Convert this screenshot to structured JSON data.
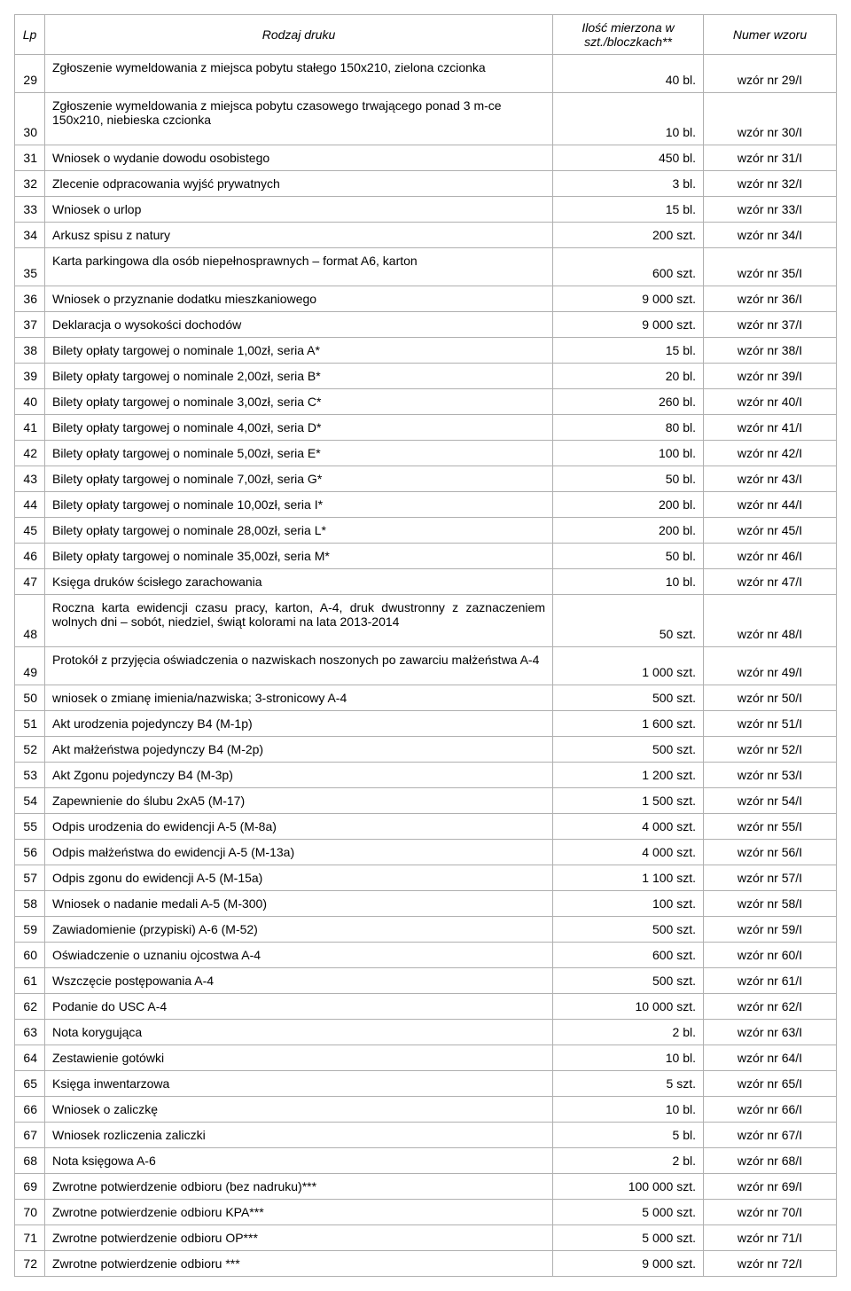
{
  "columns": {
    "lp": "Lp",
    "desc": "Rodzaj druku",
    "qty": "Ilość mierzona w szt./bloczkach**",
    "num": "Numer wzoru"
  },
  "rows": [
    {
      "lp": "29",
      "desc": "Zgłoszenie wymeldowania z miejsca pobytu stałego 150x210, zielona czcionka",
      "qty": "40 bl.",
      "num": "wzór nr 29/I",
      "tall": true
    },
    {
      "lp": "30",
      "desc": "Zgłoszenie wymeldowania z miejsca pobytu czasowego trwającego ponad 3 m-ce 150x210, niebieska czcionka",
      "qty": "10 bl.",
      "num": "wzór nr 30/I",
      "tall": true
    },
    {
      "lp": "31",
      "desc": "Wniosek o wydanie dowodu osobistego",
      "qty": "450 bl.",
      "num": "wzór nr 31/I"
    },
    {
      "lp": "32",
      "desc": "Zlecenie odpracowania wyjść prywatnych",
      "qty": "3 bl.",
      "num": "wzór nr 32/I"
    },
    {
      "lp": "33",
      "desc": "Wniosek o urlop",
      "qty": "15 bl.",
      "num": "wzór nr 33/I"
    },
    {
      "lp": "34",
      "desc": "Arkusz spisu z natury",
      "qty": "200 szt.",
      "num": "wzór nr 34/I"
    },
    {
      "lp": "35",
      "desc": "Karta parkingowa dla osób niepełnosprawnych – format A6, karton",
      "qty": "600 szt.",
      "num": "wzór nr 35/I",
      "tall": true
    },
    {
      "lp": "36",
      "desc": "Wniosek o przyznanie dodatku mieszkaniowego",
      "qty": "9 000 szt.",
      "num": "wzór nr 36/I"
    },
    {
      "lp": "37",
      "desc": "Deklaracja o wysokości dochodów",
      "qty": "9 000 szt.",
      "num": "wzór nr 37/I"
    },
    {
      "lp": "38",
      "desc": "Bilety opłaty targowej o nominale 1,00zł, seria A*",
      "qty": "15 bl.",
      "num": "wzór nr 38/I"
    },
    {
      "lp": "39",
      "desc": "Bilety opłaty targowej o nominale 2,00zł, seria B*",
      "qty": "20 bl.",
      "num": "wzór nr 39/I"
    },
    {
      "lp": "40",
      "desc": "Bilety opłaty targowej o nominale 3,00zł, seria C*",
      "qty": "260 bl.",
      "num": "wzór nr 40/I"
    },
    {
      "lp": "41",
      "desc": "Bilety opłaty targowej o nominale 4,00zł, seria D*",
      "qty": "80 bl.",
      "num": "wzór nr 41/I"
    },
    {
      "lp": "42",
      "desc": "Bilety opłaty targowej o nominale 5,00zł, seria E*",
      "qty": "100 bl.",
      "num": "wzór nr 42/I"
    },
    {
      "lp": "43",
      "desc": "Bilety opłaty targowej o nominale 7,00zł, seria G*",
      "qty": "50 bl.",
      "num": "wzór nr 43/I"
    },
    {
      "lp": "44",
      "desc": "Bilety opłaty targowej o nominale 10,00zł, seria I*",
      "qty": "200 bl.",
      "num": "wzór nr 44/I"
    },
    {
      "lp": "45",
      "desc": "Bilety opłaty targowej o nominale 28,00zł, seria L*",
      "qty": "200 bl.",
      "num": "wzór nr 45/I"
    },
    {
      "lp": "46",
      "desc": "Bilety opłaty targowej o nominale 35,00zł, seria M*",
      "qty": "50 bl.",
      "num": "wzór nr 46/I"
    },
    {
      "lp": "47",
      "desc": "Księga druków ścisłego zarachowania",
      "qty": "10 bl.",
      "num": "wzór nr 47/I"
    },
    {
      "lp": "48",
      "desc": "Roczna karta ewidencji czasu pracy, karton, A-4, druk dwustronny z zaznaczeniem wolnych dni – sobót, niedziel, świąt kolorami na lata 2013-2014",
      "qty": "50 szt.",
      "num": "wzór nr 48/I",
      "tall": true,
      "justify": true
    },
    {
      "lp": "49",
      "desc": "Protokół z przyjęcia oświadczenia o nazwiskach noszonych po zawarciu małżeństwa A-4",
      "qty": "1 000 szt.",
      "num": "wzór nr 49/I",
      "tall": true
    },
    {
      "lp": "50",
      "desc": "wniosek o zmianę imienia/nazwiska; 3-stronicowy A-4",
      "qty": "500 szt.",
      "num": "wzór nr 50/I"
    },
    {
      "lp": "51",
      "desc": "Akt urodzenia pojedynczy B4 (M-1p)",
      "qty": "1 600 szt.",
      "num": "wzór nr 51/I"
    },
    {
      "lp": "52",
      "desc": "Akt małżeństwa pojedynczy B4 (M-2p)",
      "qty": "500 szt.",
      "num": "wzór nr 52/I"
    },
    {
      "lp": "53",
      "desc": "Akt Zgonu pojedynczy B4 (M-3p)",
      "qty": "1 200 szt.",
      "num": "wzór nr 53/I"
    },
    {
      "lp": "54",
      "desc": "Zapewnienie do ślubu 2xA5 (M-17)",
      "qty": "1 500 szt.",
      "num": "wzór nr 54/I"
    },
    {
      "lp": "55",
      "desc": "Odpis urodzenia do ewidencji A-5 (M-8a)",
      "qty": "4 000 szt.",
      "num": "wzór nr 55/I"
    },
    {
      "lp": "56",
      "desc": "Odpis małżeństwa do ewidencji A-5 (M-13a)",
      "qty": "4 000 szt.",
      "num": "wzór nr 56/I"
    },
    {
      "lp": "57",
      "desc": "Odpis zgonu do ewidencji A-5 (M-15a)",
      "qty": "1 100 szt.",
      "num": "wzór nr 57/I"
    },
    {
      "lp": "58",
      "desc": "Wniosek o nadanie medali A-5 (M-300)",
      "qty": "100 szt.",
      "num": "wzór nr 58/I"
    },
    {
      "lp": "59",
      "desc": "Zawiadomienie (przypiski) A-6 (M-52)",
      "qty": "500 szt.",
      "num": "wzór nr 59/I"
    },
    {
      "lp": "60",
      "desc": "Oświadczenie o uznaniu ojcostwa A-4",
      "qty": "600 szt.",
      "num": "wzór nr 60/I"
    },
    {
      "lp": "61",
      "desc": "Wszczęcie postępowania A-4",
      "qty": "500 szt.",
      "num": "wzór nr 61/I"
    },
    {
      "lp": "62",
      "desc": "Podanie do USC A-4",
      "qty": "10 000 szt.",
      "num": "wzór nr 62/I"
    },
    {
      "lp": "63",
      "desc": "Nota korygująca",
      "qty": "2 bl.",
      "num": "wzór nr 63/I"
    },
    {
      "lp": "64",
      "desc": "Zestawienie gotówki",
      "qty": "10 bl.",
      "num": "wzór nr 64/I"
    },
    {
      "lp": "65",
      "desc": "Księga inwentarzowa",
      "qty": "5 szt.",
      "num": "wzór nr 65/I"
    },
    {
      "lp": "66",
      "desc": "Wniosek o zaliczkę",
      "qty": "10 bl.",
      "num": "wzór nr 66/I"
    },
    {
      "lp": "67",
      "desc": "Wniosek rozliczenia zaliczki",
      "qty": "5 bl.",
      "num": "wzór nr 67/I"
    },
    {
      "lp": "68",
      "desc": "Nota księgowa A-6",
      "qty": "2 bl.",
      "num": "wzór nr 68/I"
    },
    {
      "lp": "69",
      "desc": "Zwrotne potwierdzenie odbioru (bez nadruku)***",
      "qty": "100 000 szt.",
      "num": "wzór nr 69/I"
    },
    {
      "lp": "70",
      "desc": "Zwrotne potwierdzenie odbioru KPA***",
      "qty": "5 000 szt.",
      "num": "wzór nr 70/I"
    },
    {
      "lp": "71",
      "desc": "Zwrotne potwierdzenie odbioru OP***",
      "qty": "5 000 szt.",
      "num": "wzór nr 71/I"
    },
    {
      "lp": "72",
      "desc": "Zwrotne potwierdzenie odbioru ***",
      "qty": "9 000 szt.",
      "num": "wzór nr 72/I"
    }
  ]
}
